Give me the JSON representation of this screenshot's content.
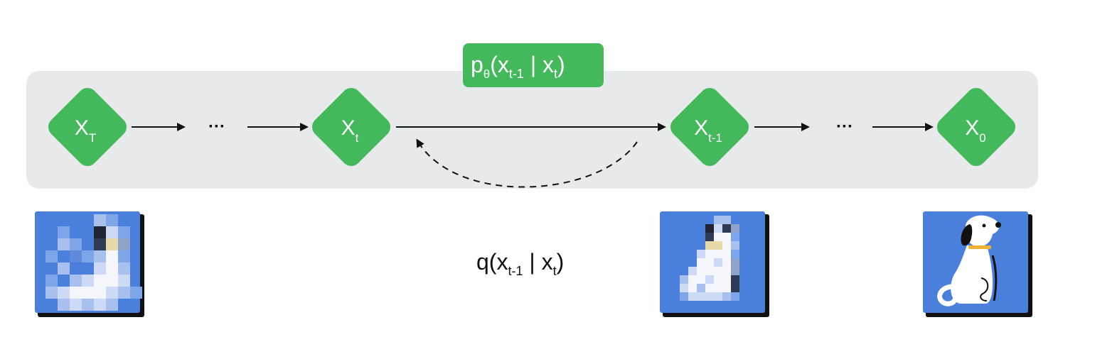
{
  "colors": {
    "panel": "#e8e9eb",
    "node": "#44b95b",
    "label_badge": "#44b95b",
    "image_bg": "#4a7fdc",
    "image_shadow": "#111111",
    "dog_collar": "#f2b233",
    "arrow": "#111111"
  },
  "nodes": {
    "xT": {
      "main": "X",
      "sub": "T"
    },
    "xt": {
      "main": "X",
      "sub": "t"
    },
    "xt1": {
      "main": "X",
      "sub": "t-1"
    },
    "x0": {
      "main": "X",
      "sub": "0"
    }
  },
  "ellipsis": {
    "left": "···",
    "right": "···"
  },
  "reverse_label": {
    "p": "p",
    "theta": "θ",
    "open": "(x",
    "sub1": "t-1",
    "bar": " | x",
    "sub2": "t",
    "close": ")"
  },
  "forward_label": {
    "q": "q(x",
    "sub1": "t-1",
    "bar": " | x",
    "sub2": "t",
    "close": ")"
  },
  "images": [
    {
      "name": "noisy-dog-image",
      "icon": "pixelated-noise"
    },
    {
      "name": "partially-denoised-dog-image",
      "icon": "pixelated-dog"
    },
    {
      "name": "clean-dog-image",
      "icon": "dog-illustration"
    }
  ]
}
